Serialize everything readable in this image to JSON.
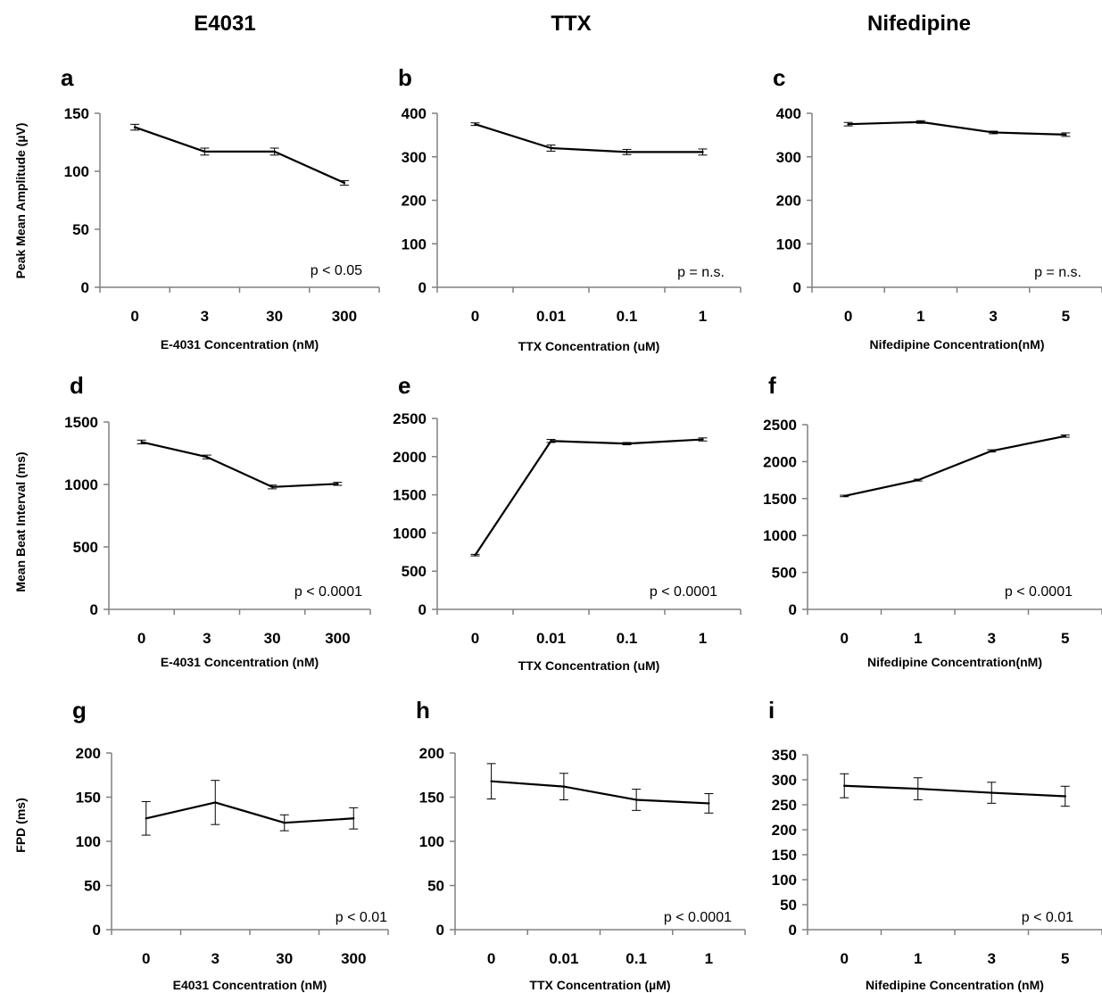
{
  "column_titles": [
    "E4031",
    "TTX",
    "Nifedipine"
  ],
  "row_ylabels": [
    "Peak Mean Amplitude (µV)",
    "Mean Beat Interval (ms)",
    "FPD (ms)"
  ],
  "chart_data": [
    {
      "letter": "a",
      "type": "line",
      "categories": [
        "0",
        "3",
        "30",
        "300"
      ],
      "values": [
        138,
        117,
        117,
        90
      ],
      "errors": [
        2.5,
        3,
        3,
        2
      ],
      "yticks": [
        0,
        50,
        100,
        150
      ],
      "ylim": [
        0,
        150
      ],
      "xlabel": "E-4031 Concentration (nM)",
      "ylabel": "Peak Mean Amplitude (µV)",
      "annotation": "p < 0.05"
    },
    {
      "letter": "b",
      "type": "line",
      "categories": [
        "0",
        "0.01",
        "0.1",
        "1"
      ],
      "values": [
        375,
        320,
        311,
        311
      ],
      "errors": [
        3,
        7,
        6,
        7
      ],
      "yticks": [
        0,
        100,
        200,
        300,
        400
      ],
      "ylim": [
        0,
        400
      ],
      "xlabel": "TTX Concentration (uM)",
      "ylabel": "",
      "annotation": "p = n.s."
    },
    {
      "letter": "c",
      "type": "line",
      "categories": [
        "0",
        "1",
        "3",
        "5"
      ],
      "values": [
        375,
        380,
        356,
        351
      ],
      "errors": [
        4,
        3,
        3,
        4
      ],
      "yticks": [
        0,
        100,
        200,
        300,
        400
      ],
      "ylim": [
        0,
        400
      ],
      "xlabel": "Nifedipine Concentration(nM)",
      "ylabel": "",
      "annotation": "p = n.s."
    },
    {
      "letter": "d",
      "type": "line",
      "categories": [
        "0",
        "3",
        "30",
        "300"
      ],
      "values": [
        1340,
        1220,
        980,
        1005
      ],
      "errors": [
        15,
        15,
        15,
        12
      ],
      "yticks": [
        0,
        500,
        1000,
        1500
      ],
      "ylim": [
        0,
        1500
      ],
      "xlabel": "E-4031 Concentration (nM)",
      "ylabel": "Mean Beat Interval (ms)",
      "annotation": "p < 0.0001"
    },
    {
      "letter": "e",
      "type": "line",
      "categories": [
        "0",
        "0.01",
        "0.1",
        "1"
      ],
      "values": [
        710,
        2205,
        2170,
        2225
      ],
      "errors": [
        10,
        20,
        15,
        20
      ],
      "yticks": [
        0,
        500,
        1000,
        1500,
        2000,
        2500
      ],
      "ylim": [
        0,
        2500
      ],
      "xlabel": "TTX Concentration (uM)",
      "ylabel": "",
      "annotation": "p < 0.0001"
    },
    {
      "letter": "f",
      "type": "line",
      "categories": [
        "0",
        "1",
        "3",
        "5"
      ],
      "values": [
        1535,
        1750,
        2145,
        2345
      ],
      "errors": [
        10,
        12,
        15,
        15
      ],
      "yticks": [
        0,
        500,
        1000,
        1500,
        2000,
        2500
      ],
      "ylim": [
        0,
        2500
      ],
      "xlabel": "Nifedipine Concentration(nM)",
      "ylabel": "",
      "annotation": "p < 0.0001"
    },
    {
      "letter": "g",
      "type": "line",
      "categories": [
        "0",
        "3",
        "30",
        "300"
      ],
      "values": [
        126,
        144,
        121,
        126
      ],
      "errors": [
        19,
        25,
        9,
        12
      ],
      "yticks": [
        0,
        50,
        100,
        150,
        200
      ],
      "ylim": [
        0,
        200
      ],
      "xlabel": "E4031 Concentration (nM)",
      "ylabel": "FPD (ms)",
      "annotation": "p < 0.01"
    },
    {
      "letter": "h",
      "type": "line",
      "categories": [
        "0",
        "0.01",
        "0.1",
        "1"
      ],
      "values": [
        168,
        162,
        147,
        143
      ],
      "errors": [
        20,
        15,
        12,
        11
      ],
      "yticks": [
        0,
        50,
        100,
        150,
        200
      ],
      "ylim": [
        0,
        200
      ],
      "xlabel": "TTX Concentration (µM)",
      "ylabel": "",
      "annotation": "p < 0.0001"
    },
    {
      "letter": "i",
      "type": "line",
      "categories": [
        "0",
        "1",
        "3",
        "5"
      ],
      "values": [
        288,
        282,
        274,
        267
      ],
      "errors": [
        24,
        22,
        21,
        20
      ],
      "yticks": [
        0,
        50,
        100,
        150,
        200,
        250,
        300,
        350
      ],
      "ylim": [
        0,
        350
      ],
      "xlabel": "Nifedipine Concentration (nM)",
      "ylabel": "",
      "annotation": "p < 0.01"
    }
  ]
}
